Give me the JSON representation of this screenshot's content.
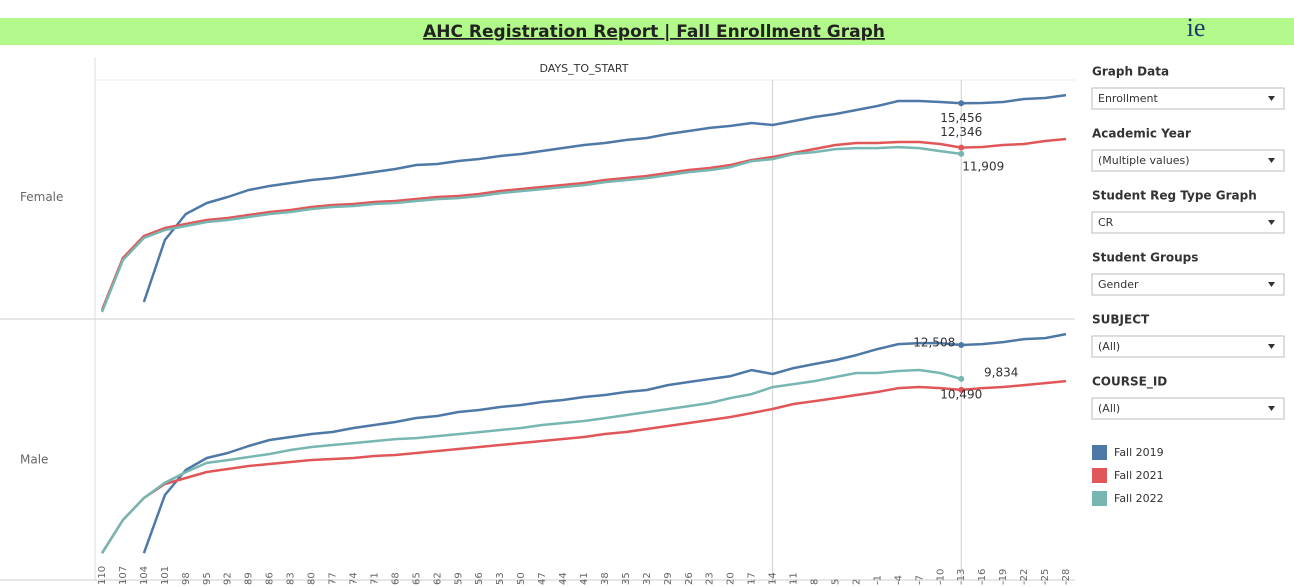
{
  "title": "AHC Registration Report | Fall Enrollment Graph",
  "logo": "ie",
  "chart_data": {
    "type": "line",
    "x_label": "DAYS_TO_START",
    "x": [
      110,
      107,
      104,
      101,
      98,
      95,
      92,
      89,
      86,
      83,
      80,
      77,
      74,
      71,
      68,
      65,
      62,
      59,
      56,
      53,
      50,
      47,
      44,
      41,
      38,
      35,
      32,
      29,
      26,
      23,
      20,
      17,
      14,
      11,
      8,
      5,
      2,
      -1,
      -4,
      -7,
      -10,
      -13,
      -16,
      -19,
      -22,
      -25,
      -28
    ],
    "xlim": [
      111,
      -29
    ],
    "xticks": [
      110,
      107,
      104,
      101,
      98,
      95,
      92,
      89,
      86,
      83,
      80,
      77,
      74,
      71,
      68,
      65,
      62,
      59,
      56,
      53,
      50,
      47,
      44,
      41,
      38,
      35,
      32,
      29,
      26,
      23,
      20,
      17,
      14,
      11,
      8,
      5,
      2,
      -1,
      -4,
      -7,
      -10,
      -13,
      -16,
      -19,
      -22,
      -25,
      -28
    ],
    "reference_lines": [
      14,
      -13
    ],
    "panels": [
      {
        "name": "Female",
        "ylim": [
          400,
          18700
        ],
        "series": [
          {
            "name": "Fall 2019",
            "color": "#4e79a7",
            "values": [
              null,
              null,
              1522,
              5868,
              7690,
              8462,
              8882,
              9373,
              9653,
              9864,
              10074,
              10214,
              10424,
              10635,
              10845,
              11125,
              11195,
              11406,
              11546,
              11756,
              11896,
              12107,
              12317,
              12527,
              12668,
              12878,
              13018,
              13298,
              13509,
              13729,
              13869,
              14070,
              13930,
              14210,
              14490,
              14700,
              14981,
              15261,
              15612,
              15612,
              15542,
              15456,
              15472,
              15542,
              15752,
              15822,
              16032
            ],
            "value_labels": [
              null,
              null,
              null,
              null,
              null,
              null,
              null,
              null,
              null,
              null,
              null,
              null,
              null,
              null,
              null,
              null,
              null,
              null,
              null,
              null,
              null,
              null,
              null,
              null,
              null,
              null,
              null,
              null,
              null,
              null,
              null,
              null,
              null,
              null,
              null,
              null,
              null,
              null,
              null,
              null,
              null,
              "15,456",
              null,
              null,
              null,
              null,
              null
            ]
          },
          {
            "name": "Fall 2021",
            "color": "#e15759",
            "values": [
              961,
              4606,
              6148,
              6709,
              6989,
              7270,
              7410,
              7620,
              7831,
              7971,
              8181,
              8321,
              8391,
              8532,
              8602,
              8742,
              8882,
              8952,
              9092,
              9303,
              9443,
              9583,
              9723,
              9864,
              10074,
              10214,
              10354,
              10565,
              10775,
              10915,
              11125,
              11476,
              11686,
              11967,
              12247,
              12527,
              12668,
              12668,
              12738,
              12738,
              12597,
              12346,
              12387,
              12527,
              12597,
              12808,
              12948
            ],
            "value_labels": [
              null,
              null,
              null,
              null,
              null,
              null,
              null,
              null,
              null,
              null,
              null,
              null,
              null,
              null,
              null,
              null,
              null,
              null,
              null,
              null,
              null,
              null,
              null,
              null,
              null,
              null,
              null,
              null,
              null,
              null,
              null,
              null,
              null,
              null,
              null,
              null,
              null,
              null,
              null,
              null,
              null,
              "12,346",
              null,
              null,
              null,
              null,
              null
            ]
          },
          {
            "name": "Fall 2022",
            "color": "#76b7b2",
            "values": [
              820,
              4460,
              6010,
              6570,
              6850,
              7130,
              7270,
              7480,
              7690,
              7830,
              8040,
              8180,
              8250,
              8390,
              8460,
              8600,
              8740,
              8810,
              8950,
              9160,
              9300,
              9440,
              9580,
              9720,
              9930,
              10070,
              10210,
              10420,
              10630,
              10770,
              10980,
              11400,
              11540,
              11900,
              12030,
              12240,
              12310,
              12310,
              12380,
              12310,
              12100,
              11909,
              null,
              null,
              null,
              null,
              null
            ],
            "value_labels": [
              null,
              null,
              null,
              null,
              null,
              null,
              null,
              null,
              null,
              null,
              null,
              null,
              null,
              null,
              null,
              null,
              null,
              null,
              null,
              null,
              null,
              null,
              null,
              null,
              null,
              null,
              null,
              null,
              null,
              null,
              null,
              null,
              null,
              null,
              null,
              null,
              null,
              null,
              null,
              null,
              null,
              "11,909",
              null,
              null,
              null,
              null,
              null
            ]
          }
        ]
      },
      {
        "name": "Male",
        "ylim": [
          -1500,
          14000
        ],
        "series": [
          {
            "name": "Fall 2019",
            "color": "#4e79a7",
            "values": [
              null,
              null,
              100,
              3566,
              5056,
              5771,
              6069,
              6486,
              6844,
              7023,
              7202,
              7321,
              7559,
              7738,
              7917,
              8155,
              8274,
              8513,
              8632,
              8811,
              8930,
              9109,
              9228,
              9407,
              9526,
              9705,
              9824,
              10122,
              10301,
              10480,
              10658,
              11016,
              10778,
              11135,
              11374,
              11612,
              11910,
              12268,
              12566,
              12625,
              12625,
              12508,
              12566,
              12685,
              12864,
              12923,
              13162
            ],
            "value_labels": [
              null,
              null,
              null,
              null,
              null,
              null,
              null,
              null,
              null,
              null,
              null,
              null,
              null,
              null,
              null,
              null,
              null,
              null,
              null,
              null,
              null,
              null,
              null,
              null,
              null,
              null,
              null,
              null,
              null,
              null,
              null,
              null,
              null,
              null,
              null,
              null,
              null,
              null,
              null,
              null,
              null,
              "12,508",
              null,
              null,
              null,
              null,
              null
            ]
          },
          {
            "name": "Fall 2021",
            "color": "#e15759",
            "values": [
              100,
              2076,
              3387,
              4222,
              4579,
              4937,
              5116,
              5294,
              5414,
              5533,
              5652,
              5712,
              5771,
              5890,
              5950,
              6069,
              6188,
              6308,
              6427,
              6546,
              6665,
              6784,
              6904,
              7023,
              7202,
              7321,
              7500,
              7678,
              7857,
              8036,
              8215,
              8453,
              8692,
              8990,
              9168,
              9347,
              9526,
              9705,
              9943,
              10003,
              9943,
              9834,
              9943,
              10003,
              10122,
              10241,
              10360
            ],
            "value_labels": [
              null,
              null,
              null,
              null,
              null,
              null,
              null,
              null,
              null,
              null,
              null,
              null,
              null,
              null,
              null,
              null,
              null,
              null,
              null,
              null,
              null,
              null,
              null,
              null,
              null,
              null,
              null,
              null,
              null,
              null,
              null,
              null,
              null,
              null,
              null,
              null,
              null,
              null,
              null,
              null,
              null,
              "9,834",
              null,
              null,
              null,
              null,
              null
            ]
          },
          {
            "name": "Fall 2022",
            "color": "#76b7b2",
            "values": [
              100,
              2076,
              3387,
              4300,
              4930,
              5480,
              5650,
              5830,
              6010,
              6250,
              6430,
              6550,
              6660,
              6780,
              6900,
              6960,
              7080,
              7200,
              7320,
              7440,
              7560,
              7740,
              7860,
              7980,
              8150,
              8330,
              8510,
              8690,
              8870,
              9050,
              9350,
              9580,
              10000,
              10180,
              10360,
              10600,
              10840,
              10840,
              10960,
              11020,
              10840,
              10490,
              null,
              null,
              null,
              null,
              null
            ],
            "value_labels": [
              null,
              null,
              null,
              null,
              null,
              null,
              null,
              null,
              null,
              null,
              null,
              null,
              null,
              null,
              null,
              null,
              null,
              null,
              null,
              null,
              null,
              null,
              null,
              null,
              null,
              null,
              null,
              null,
              null,
              null,
              null,
              null,
              null,
              null,
              null,
              null,
              null,
              null,
              null,
              null,
              null,
              "10,490",
              null,
              null,
              null,
              null,
              null
            ]
          }
        ]
      }
    ]
  },
  "filters": [
    {
      "label": "Graph Data",
      "value": "Enrollment"
    },
    {
      "label": "Academic Year",
      "value": "(Multiple values)"
    },
    {
      "label": "Student Reg Type Graph",
      "value": "CR"
    },
    {
      "label": "Student Groups",
      "value": "Gender"
    },
    {
      "label": "SUBJECT",
      "value": "(All)"
    },
    {
      "label": "COURSE_ID",
      "value": "(All)"
    }
  ]
}
